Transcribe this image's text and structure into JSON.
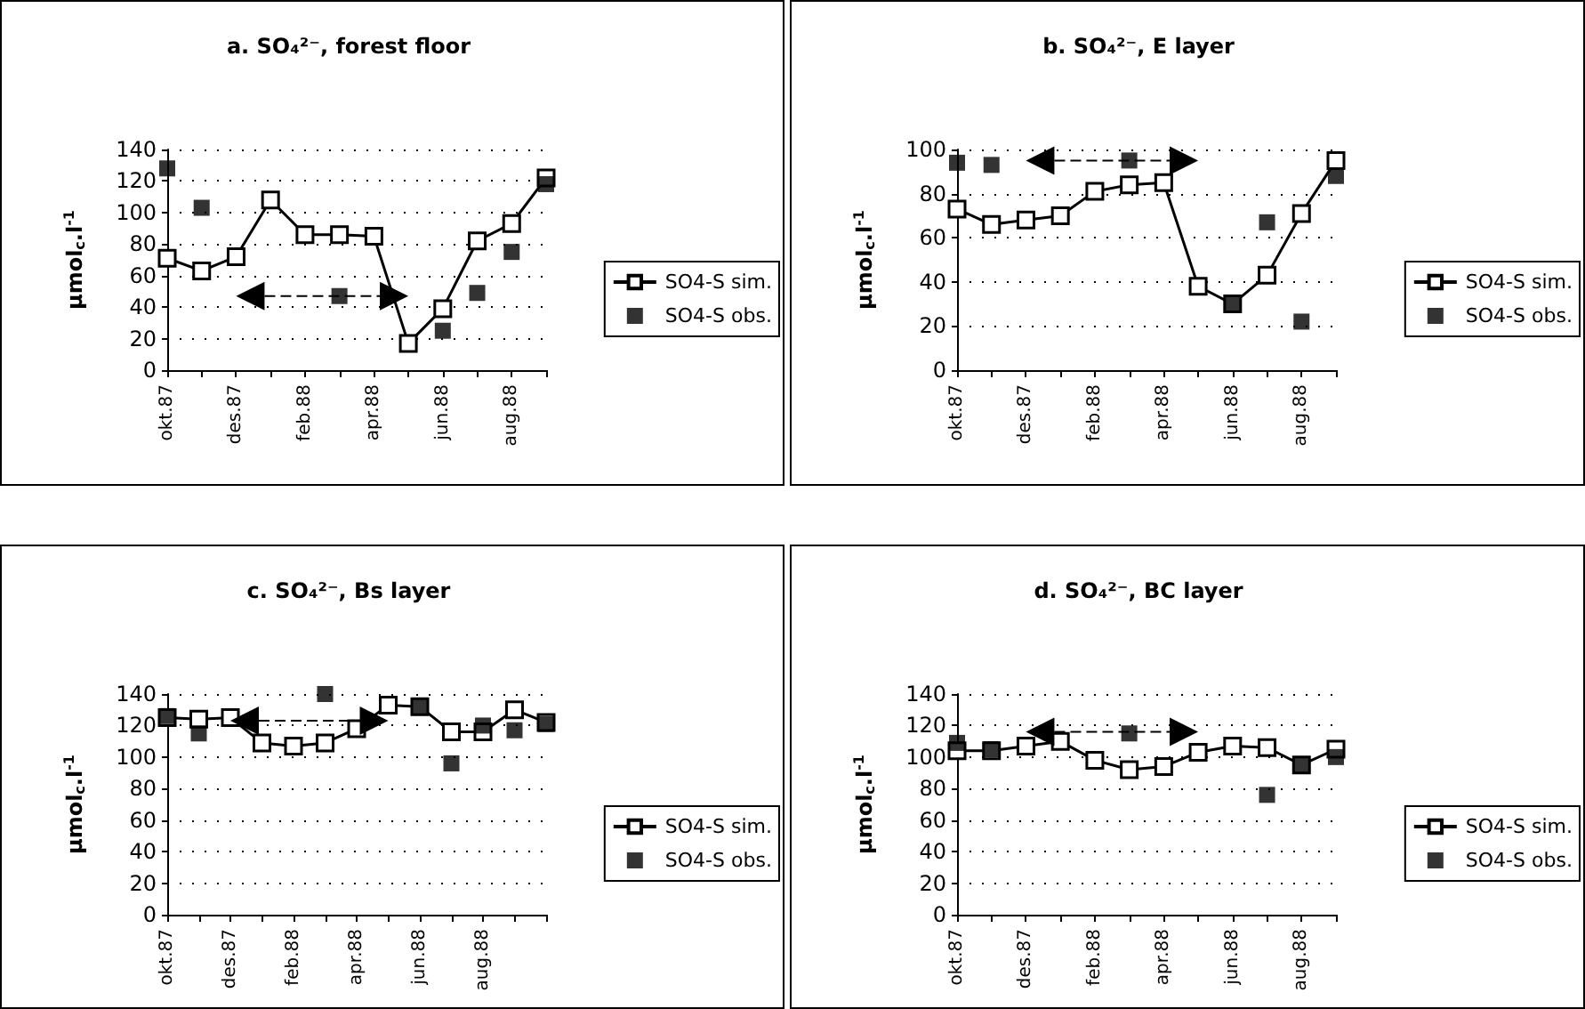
{
  "chart_data": [
    {
      "type": "line",
      "title": "a. SO₄²⁻, forest floor",
      "ylabel": "μmol$_{c}$.l$^{-1}$",
      "categories": [
        "okt.87",
        null,
        "des.87",
        null,
        "feb.88",
        null,
        "apr.88",
        null,
        "jun.88",
        null,
        "aug.88",
        null
      ],
      "ylim": [
        0,
        140
      ],
      "yticks": [
        0,
        20,
        40,
        60,
        80,
        100,
        120,
        140
      ],
      "grid": "y",
      "legend": "right",
      "marker": "square",
      "line_style": "solid",
      "series": [
        {
          "name": "SO4-S sim.",
          "color": "#000000",
          "values": [
            71,
            63,
            72,
            108,
            86,
            86,
            85,
            17,
            39,
            82,
            93,
            122
          ]
        },
        {
          "name": "SO4-S obs.",
          "type": "scatter",
          "color": "#000000",
          "values": [
            128,
            103,
            null,
            null,
            null,
            47,
            null,
            null,
            25,
            49,
            75,
            118
          ]
        }
      ]
    },
    {
      "type": "line",
      "title": "b. SO₄²⁻, E layer",
      "ylabel": "μmol$_{c}$.l$^{-1}$",
      "categories": [
        "okt.87",
        null,
        "des.87",
        null,
        "feb.88",
        null,
        "apr.88",
        null,
        "jun.88",
        null,
        "aug.88",
        null
      ],
      "ylim": [
        0,
        100
      ],
      "yticks": [
        0,
        20,
        40,
        60,
        80,
        100
      ],
      "grid": "y",
      "legend": "right",
      "marker": "square",
      "line_style": "solid",
      "series": [
        {
          "name": "SO4-S sim.",
          "color": "#000000",
          "values": [
            73,
            66,
            68,
            70,
            81,
            84,
            85,
            38,
            30,
            43,
            71,
            95
          ]
        },
        {
          "name": "SO4-S obs.",
          "type": "scatter",
          "color": "#000000",
          "values": [
            94,
            93,
            null,
            null,
            null,
            95,
            null,
            null,
            30,
            67,
            22,
            88
          ]
        }
      ]
    },
    {
      "type": "line",
      "title": "c. SO₄²⁻, Bs layer",
      "ylabel": "μmol$_{c}$.l$^{-1}$",
      "categories": [
        "okt.87",
        null,
        "des.87",
        null,
        "feb.88",
        null,
        "apr.88",
        null,
        "jun.88",
        null,
        "aug.88",
        null,
        null
      ],
      "ylim": [
        0,
        140
      ],
      "yticks": [
        0,
        20,
        40,
        60,
        80,
        100,
        120,
        140
      ],
      "grid": "y",
      "legend": "right",
      "marker": "square",
      "line_style": "solid",
      "series": [
        {
          "name": "SO4-S sim.",
          "color": "#000000",
          "values": [
            125,
            124,
            125,
            109,
            107,
            109,
            118,
            133,
            132,
            116,
            116,
            130,
            122
          ]
        },
        {
          "name": "SO4-S obs.",
          "type": "scatter",
          "color": "#000000",
          "values": [
            126,
            115,
            null,
            null,
            null,
            140,
            null,
            null,
            132,
            96,
            120,
            117,
            121
          ]
        }
      ]
    },
    {
      "type": "line",
      "title": "d. SO₄²⁻, BC layer",
      "ylabel": "μmol$_{c}$.l$^{-1}$",
      "categories": [
        "okt.87",
        null,
        "des.87",
        null,
        "feb.88",
        null,
        "apr.88",
        null,
        "jun.88",
        null,
        "aug.88",
        null
      ],
      "ylim": [
        0,
        140
      ],
      "yticks": [
        0,
        20,
        40,
        60,
        80,
        100,
        120,
        140
      ],
      "grid": "y",
      "legend": "right",
      "marker": "square",
      "line_style": "solid",
      "series": [
        {
          "name": "SO4-S sim.",
          "color": "#000000",
          "values": [
            104,
            104,
            107,
            110,
            98,
            92,
            94,
            103,
            107,
            106,
            95,
            105
          ]
        },
        {
          "name": "SO4-S obs.",
          "type": "scatter",
          "color": "#000000",
          "values": [
            109,
            105,
            null,
            null,
            null,
            115,
            null,
            null,
            null,
            76,
            95,
            100
          ]
        }
      ]
    }
  ]
}
